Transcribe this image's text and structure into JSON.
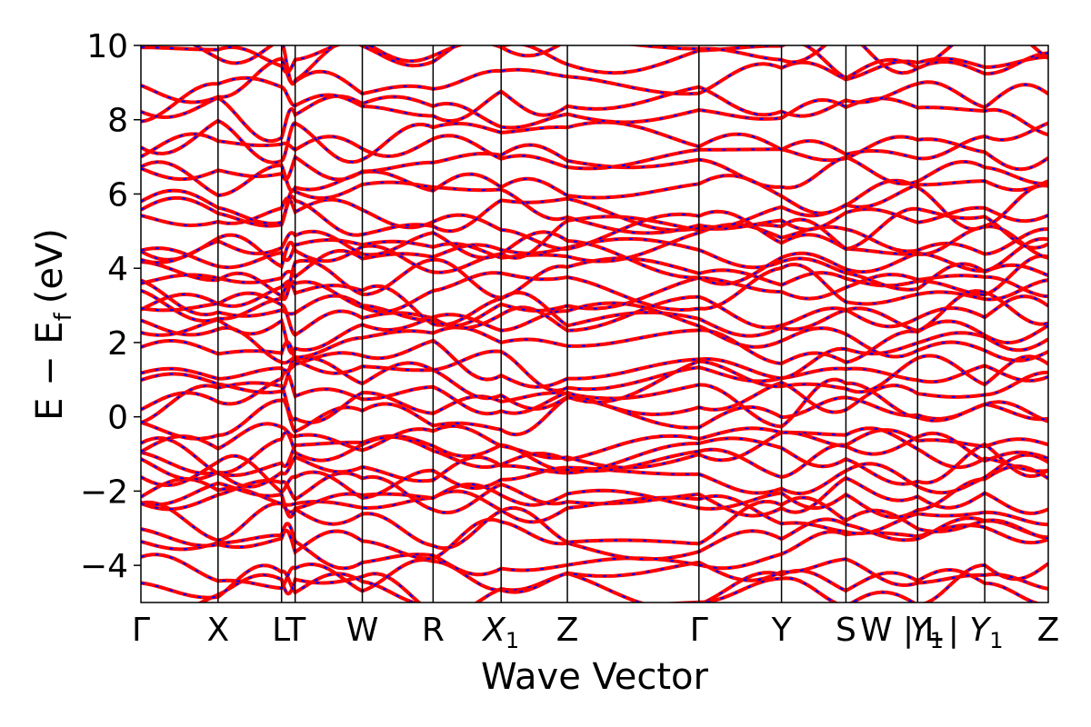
{
  "chart_data": {
    "type": "line",
    "title": "",
    "xlabel": "Wave Vector",
    "ylabel": "E − E",
    "ylabel_sub": "f",
    "ylabel_unit": "(eV)",
    "ylim": [
      -5,
      10
    ],
    "yticks": [
      -4,
      -2,
      0,
      2,
      4,
      6,
      8,
      10
    ],
    "ytick_labels": [
      "−4",
      "−2",
      "0",
      "2",
      "4",
      "6",
      "8",
      "10"
    ],
    "kpath_labels": [
      {
        "text": "Γ",
        "x": 0.0
      },
      {
        "text": "X",
        "x": 0.085
      },
      {
        "text": "LT",
        "x": 0.163
      },
      {
        "text": "W",
        "x": 0.244
      },
      {
        "text": "R",
        "x": 0.322
      },
      {
        "text": "X",
        "sub": "1",
        "x": 0.397
      },
      {
        "text": "Z",
        "x": 0.47
      },
      {
        "text": "Γ",
        "x": 0.615
      },
      {
        "text": "Y",
        "x": 0.706
      },
      {
        "text": "S",
        "x": 0.777
      },
      {
        "text": "W | L",
        "x": 0.838
      },
      {
        "text": "Y",
        "sub": "1",
        "x": 0.866
      },
      {
        "text": "| Y",
        "sub": "1",
        "x": 0.92
      },
      {
        "text": "Z",
        "x": 1.0
      }
    ],
    "kpath_lines": [
      0.085,
      0.155,
      0.17,
      0.244,
      0.322,
      0.397,
      0.47,
      0.615,
      0.706,
      0.777,
      0.856,
      0.93
    ],
    "xlim": [
      0,
      1
    ],
    "grid": false,
    "legend": false,
    "series_colors": {
      "primary": "#ff0000",
      "overlay": "#0000ff"
    },
    "band_anchor_energies": [
      -4.8,
      -4.55,
      -4.3,
      -3.5,
      -3.3,
      -2.9,
      -2.5,
      -2.2,
      -2.0,
      -1.7,
      -1.3,
      -1.1,
      -1.0,
      -0.7,
      0.0,
      0.3,
      0.6,
      1.0,
      1.3,
      1.6,
      2.0,
      2.3,
      2.7,
      2.9,
      3.2,
      3.5,
      3.8,
      4.0,
      4.3,
      4.6,
      4.8,
      5.1,
      5.4,
      5.7,
      6.2,
      6.6,
      7.0,
      7.4,
      8.0,
      8.5,
      9.2,
      9.6,
      9.9
    ]
  }
}
